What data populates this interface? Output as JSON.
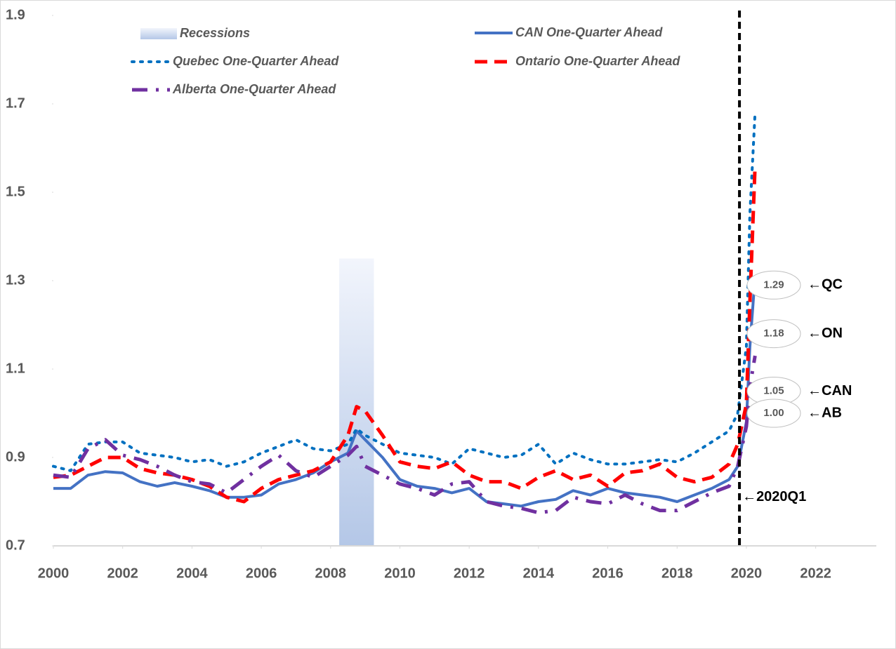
{
  "chart_data": {
    "type": "line",
    "x": [
      2000,
      2000.5,
      2001,
      2001.5,
      2002,
      2002.5,
      2003,
      2003.5,
      2004,
      2004.5,
      2005,
      2005.5,
      2006,
      2006.5,
      2007,
      2007.5,
      2008,
      2008.5,
      2008.75,
      2009,
      2009.5,
      2010,
      2010.5,
      2011,
      2011.5,
      2012,
      2012.5,
      2013,
      2013.5,
      2014,
      2014.5,
      2015,
      2015.5,
      2016,
      2016.5,
      2017,
      2017.5,
      2018,
      2018.5,
      2019,
      2019.5,
      2019.75,
      2020,
      2020.1,
      2020.25
    ],
    "series": [
      {
        "name": "CAN One-Quarter Ahead",
        "color": "#4472c4",
        "dash": "solid",
        "values": [
          0.83,
          0.83,
          0.86,
          0.868,
          0.865,
          0.845,
          0.835,
          0.843,
          0.835,
          0.825,
          0.81,
          0.81,
          0.815,
          0.84,
          0.85,
          0.865,
          0.89,
          0.91,
          0.96,
          0.94,
          0.9,
          0.85,
          0.835,
          0.83,
          0.82,
          0.83,
          0.8,
          0.795,
          0.79,
          0.8,
          0.805,
          0.825,
          0.815,
          0.83,
          0.82,
          0.815,
          0.81,
          0.8,
          0.815,
          0.83,
          0.85,
          0.88,
          0.98,
          1.15,
          1.31
        ]
      },
      {
        "name": "Quebec One-Quarter Ahead",
        "color": "#0070c0",
        "dash": "dotted",
        "values": [
          0.88,
          0.87,
          0.93,
          0.935,
          0.935,
          0.91,
          0.905,
          0.9,
          0.89,
          0.895,
          0.88,
          0.89,
          0.91,
          0.925,
          0.94,
          0.92,
          0.915,
          0.93,
          0.965,
          0.95,
          0.93,
          0.91,
          0.905,
          0.9,
          0.885,
          0.92,
          0.91,
          0.9,
          0.905,
          0.93,
          0.885,
          0.91,
          0.895,
          0.885,
          0.885,
          0.89,
          0.895,
          0.89,
          0.91,
          0.935,
          0.96,
          1.0,
          1.15,
          1.45,
          1.68
        ]
      },
      {
        "name": "Ontario One-Quarter Ahead",
        "color": "#ff0000",
        "dash": "dashed",
        "values": [
          0.855,
          0.86,
          0.88,
          0.9,
          0.9,
          0.875,
          0.865,
          0.86,
          0.85,
          0.835,
          0.81,
          0.8,
          0.83,
          0.85,
          0.86,
          0.87,
          0.89,
          0.95,
          1.015,
          1.005,
          0.95,
          0.89,
          0.88,
          0.875,
          0.89,
          0.86,
          0.845,
          0.845,
          0.83,
          0.855,
          0.87,
          0.85,
          0.86,
          0.835,
          0.865,
          0.87,
          0.885,
          0.855,
          0.845,
          0.855,
          0.885,
          0.93,
          1.02,
          1.25,
          1.56
        ]
      },
      {
        "name": "Alberta One-Quarter Ahead",
        "color": "#7030a0",
        "dash": "dashdot",
        "values": [
          0.86,
          0.855,
          0.92,
          0.94,
          0.905,
          0.895,
          0.88,
          0.86,
          0.845,
          0.84,
          0.82,
          0.85,
          0.88,
          0.905,
          0.87,
          0.855,
          0.88,
          0.905,
          0.925,
          0.88,
          0.86,
          0.84,
          0.83,
          0.815,
          0.84,
          0.845,
          0.8,
          0.79,
          0.785,
          0.775,
          0.78,
          0.81,
          0.8,
          0.795,
          0.815,
          0.795,
          0.78,
          0.78,
          0.8,
          0.82,
          0.835,
          0.88,
          0.97,
          1.06,
          1.13
        ]
      }
    ],
    "recessions": {
      "name": "Recessions",
      "start": 2008.25,
      "end": 2009.25,
      "value": 1.35
    },
    "vline": {
      "x": 2019.8,
      "label": "←2020Q1",
      "y": 0.81
    },
    "callouts": [
      {
        "value": 1.29,
        "label": "1.29",
        "tag": "←QC"
      },
      {
        "value": 1.18,
        "label": "1.18",
        "tag": "←ON"
      },
      {
        "value": 1.05,
        "label": "1.05",
        "tag": "←CAN"
      },
      {
        "value": 1.0,
        "label": "1.00",
        "tag": "←AB"
      }
    ],
    "xlim": [
      2000,
      2023.75
    ],
    "xticks": [
      2000,
      2002,
      2004,
      2006,
      2008,
      2010,
      2012,
      2014,
      2016,
      2018,
      2020,
      2022
    ],
    "ylim": [
      0.7,
      1.9
    ],
    "yticks": [
      0.7,
      0.9,
      1.1,
      1.3,
      1.5,
      1.7,
      1.9
    ],
    "grid": false
  }
}
